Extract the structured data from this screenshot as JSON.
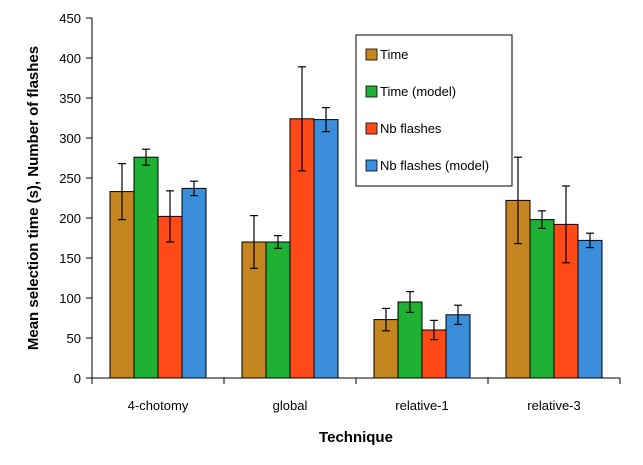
{
  "chart_data": {
    "type": "bar",
    "title": "",
    "xlabel": "Technique",
    "ylabel": "Mean selection time (s), Number of flashes",
    "ylim": [
      0,
      450
    ],
    "yticks": [
      0,
      50,
      100,
      150,
      200,
      250,
      300,
      350,
      400,
      450
    ],
    "grid": false,
    "legend_position": "top-right",
    "categories": [
      "4-chotomy",
      "global",
      "relative-1",
      "relative-3"
    ],
    "series": [
      {
        "name": "Time",
        "color": "#C5861F",
        "values": [
          233,
          170,
          73,
          222
        ],
        "errors": [
          35,
          33,
          14,
          54
        ]
      },
      {
        "name": "Time (model)",
        "color": "#1DB233",
        "values": [
          276,
          170,
          95,
          198
        ],
        "errors": [
          10,
          8,
          13,
          11
        ]
      },
      {
        "name": "Nb flashes",
        "color": "#FF4A17",
        "values": [
          202,
          324,
          60,
          192
        ],
        "errors": [
          32,
          65,
          12,
          48
        ]
      },
      {
        "name": "Nb flashes (model)",
        "color": "#3A8EDC",
        "values": [
          237,
          323,
          79,
          172
        ],
        "errors": [
          9,
          15,
          12,
          9
        ]
      }
    ]
  }
}
